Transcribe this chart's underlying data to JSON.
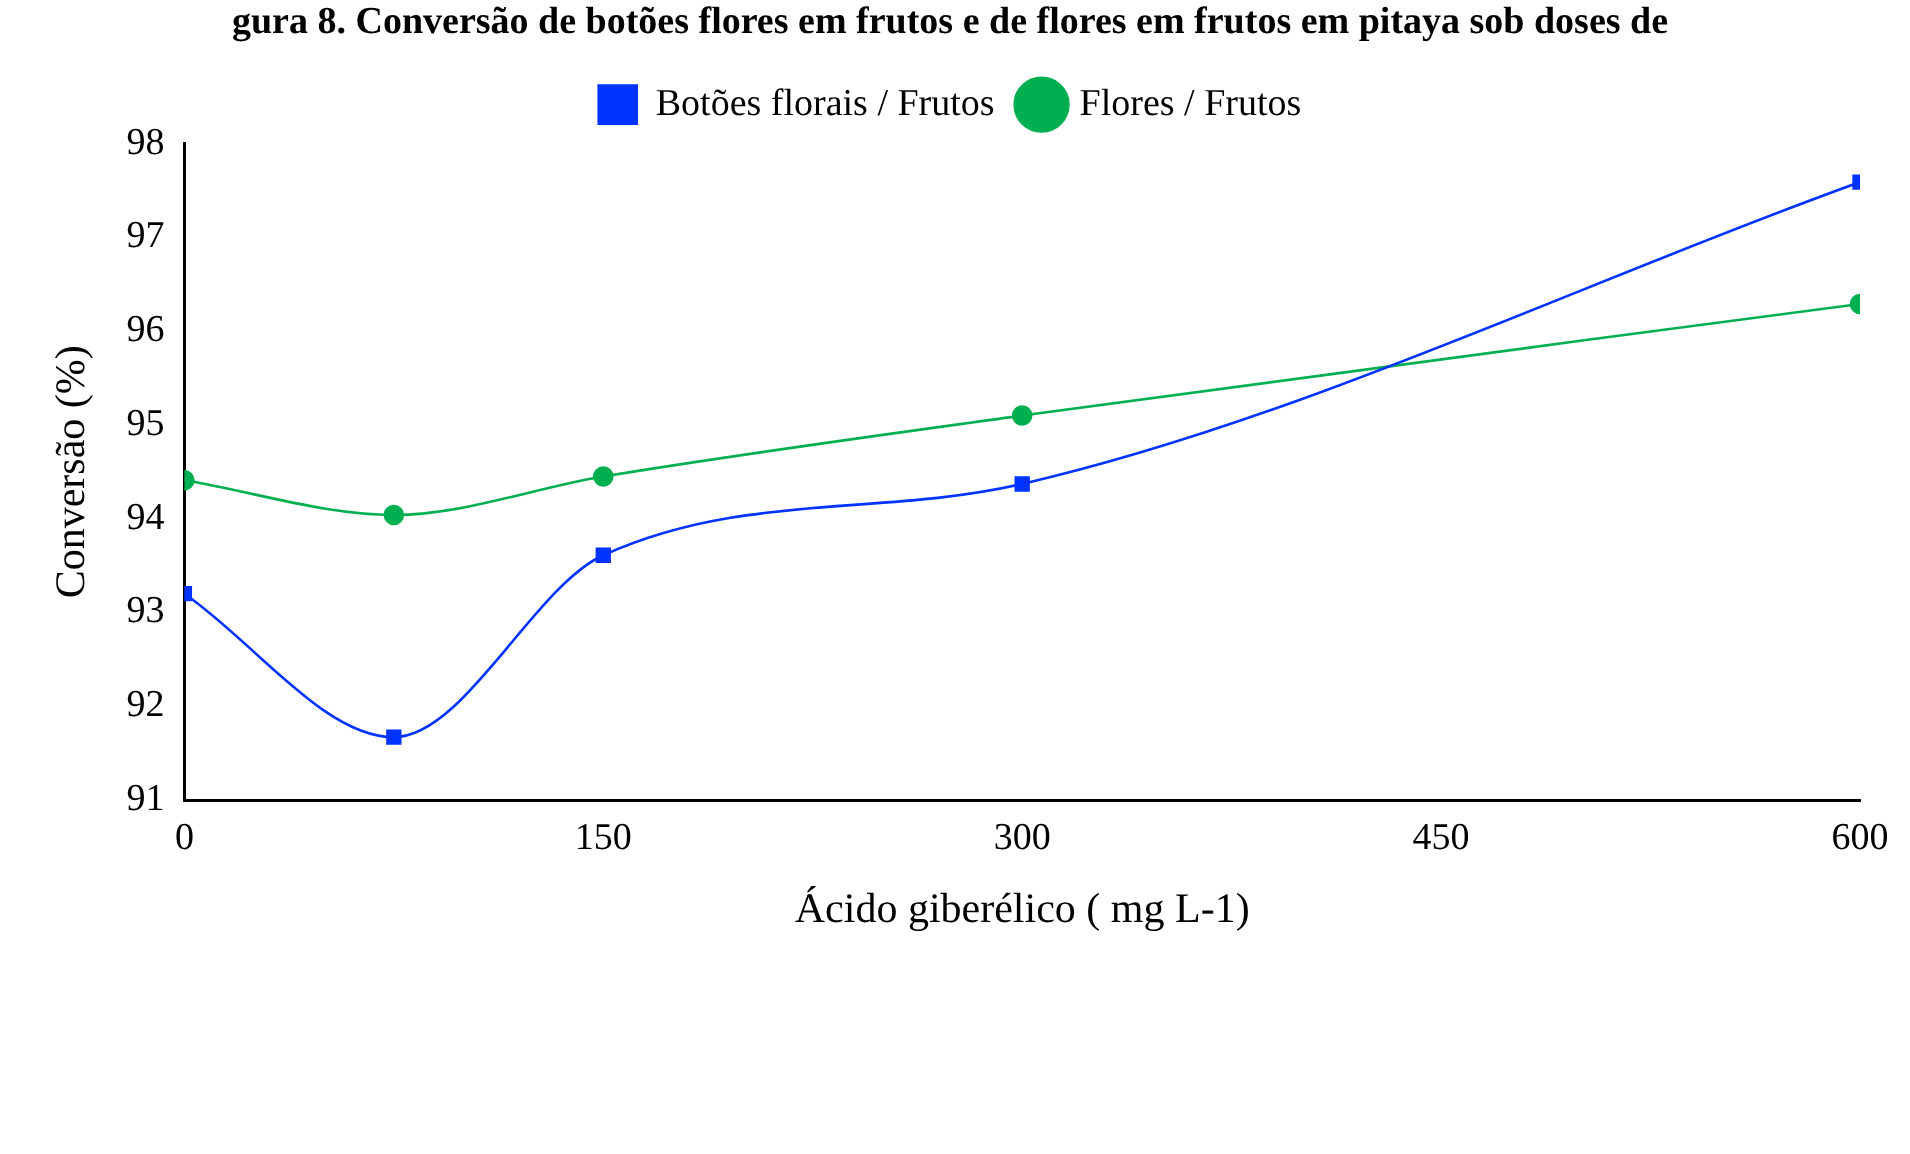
{
  "chart_data": {
    "type": "line",
    "title": "gura 8. Conversão de botões flores em frutos e de flores em frutos em pitaya sob doses de",
    "xlabel": "Ácido giberélico ( mg L-1)",
    "ylabel": "Conversão (%)",
    "x": [
      0,
      75,
      150,
      300,
      600
    ],
    "series": [
      {
        "name": "Botões florais / Frutos",
        "color": "#0033ff",
        "marker": "square",
        "values": [
          93.2,
          91.67,
          93.61,
          94.37,
          97.59
        ]
      },
      {
        "name": "Flores / Frutos",
        "color": "#00b050",
        "marker": "circle",
        "values": [
          94.41,
          94.04,
          94.45,
          95.1,
          96.29
        ]
      }
    ],
    "xlim": [
      0,
      600
    ],
    "xticks": [
      0,
      150,
      300,
      450,
      600
    ],
    "ylim": [
      91,
      98
    ],
    "yticks": [
      91,
      92,
      93,
      94,
      95,
      96,
      97,
      98
    ],
    "grid": false,
    "legend": "top"
  }
}
